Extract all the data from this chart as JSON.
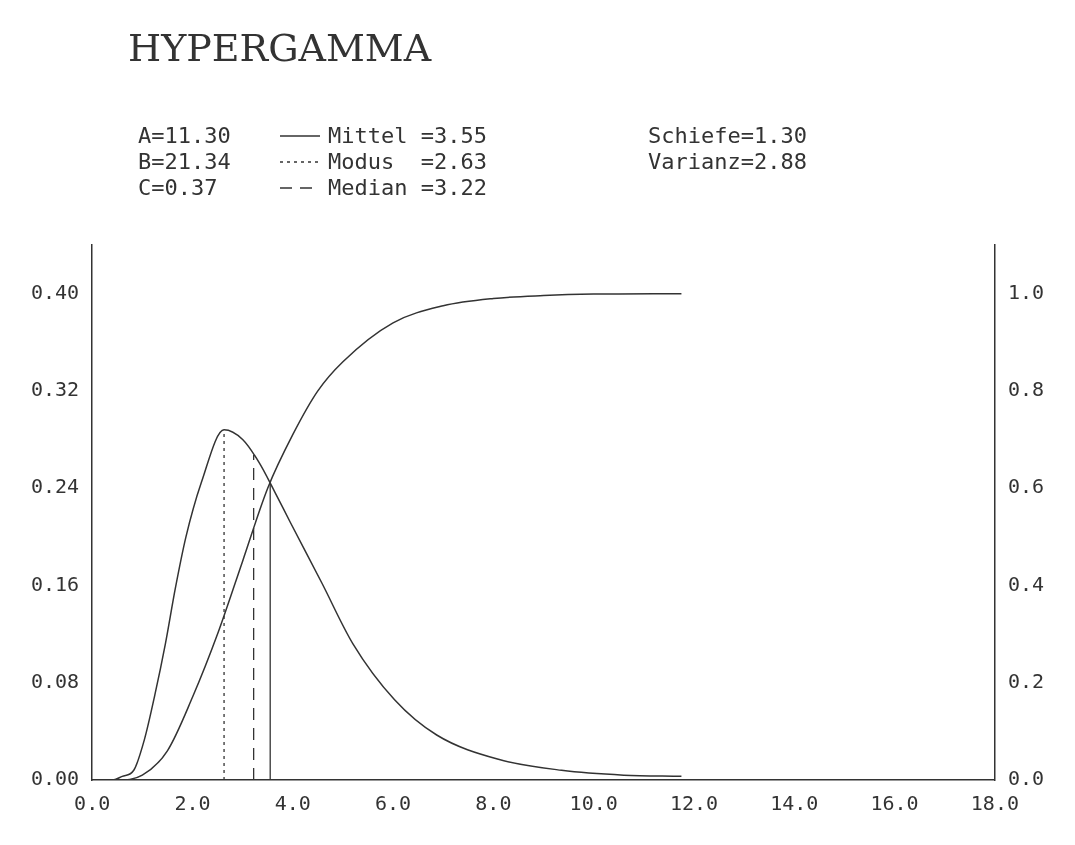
{
  "chart_data": {
    "type": "line",
    "title": "HYPERGAMMA",
    "annotations": [
      "A=11.30",
      "B=21.34",
      "C=0.37",
      "Schiefe=1.30",
      "Varianz=2.88"
    ],
    "x": [
      0,
      0.4,
      0.6,
      0.83,
      1.04,
      1.25,
      1.46,
      1.66,
      1.87,
      2.18,
      2.63,
      3.0,
      3.33,
      3.64,
      3.95,
      4.58,
      5.2,
      6.03,
      6.87,
      8.1,
      9.36,
      10.6,
      11.75
    ],
    "series": [
      {
        "color": "#333333",
        "values": [
          0,
          0,
          0.003,
          0.008,
          0.033,
          0.07,
          0.112,
          0.158,
          0.2,
          0.245,
          0.288,
          0.28,
          0.261,
          0.237,
          0.212,
          0.162,
          0.112,
          0.066,
          0.037,
          0.017,
          0.008,
          0.004,
          0.003
        ]
      },
      {
        "color": "#333333",
        "axis": "y2",
        "x": [
          0,
          0.5,
          1.0,
          1.5,
          2.0,
          2.5,
          3.0,
          3.5,
          4.0,
          4.5,
          5.0,
          6.0,
          7.0,
          8.0,
          9.0,
          10.0,
          11.75
        ],
        "values": [
          0,
          0,
          0.01,
          0.06,
          0.17,
          0.3,
          0.45,
          0.6,
          0.71,
          0.8,
          0.86,
          0.94,
          0.975,
          0.99,
          0.996,
          0.999,
          1.0
        ]
      }
    ],
    "ref_lines": [
      {
        "axis": "x",
        "value": 3.55,
        "label": "Mittel =3.55",
        "line_style": "solid"
      },
      {
        "axis": "x",
        "value": 2.63,
        "label": "Modus  =2.63",
        "line_style": "dotted"
      },
      {
        "axis": "x",
        "value": 3.22,
        "label": "Median =3.22",
        "line_style": "dashed"
      }
    ],
    "legend": "top",
    "xlim": [
      0,
      18
    ],
    "xticks": [
      {
        "value": 0,
        "label": "0.0"
      },
      {
        "value": 2,
        "label": "2.0"
      },
      {
        "value": 4,
        "label": "4.0"
      },
      {
        "value": 6,
        "label": "6.0"
      },
      {
        "value": 8,
        "label": "8.0"
      },
      {
        "value": 10,
        "label": "10.0"
      },
      {
        "value": 12,
        "label": "12.0"
      },
      {
        "value": 14,
        "label": "14.0"
      },
      {
        "value": 16,
        "label": "16.0"
      },
      {
        "value": 18,
        "label": "18.0"
      }
    ],
    "ylim": [
      0,
      0.44
    ],
    "yticks": [
      {
        "value": 0,
        "label": "0.00"
      },
      {
        "value": 0.08,
        "label": "0.08"
      },
      {
        "value": 0.16,
        "label": "0.16"
      },
      {
        "value": 0.24,
        "label": "0.24"
      },
      {
        "value": 0.32,
        "label": "0.32"
      },
      {
        "value": 0.4,
        "label": "0.40"
      }
    ],
    "y2lim": [
      0,
      1.1
    ],
    "y2ticks": [
      {
        "value": 0,
        "label": "0.0"
      },
      {
        "value": 0.2,
        "label": "0.2"
      },
      {
        "value": 0.4,
        "label": "0.4"
      },
      {
        "value": 0.6,
        "label": "0.6"
      },
      {
        "value": 0.8,
        "label": "0.8"
      },
      {
        "value": 1,
        "label": "1.0"
      }
    ]
  }
}
